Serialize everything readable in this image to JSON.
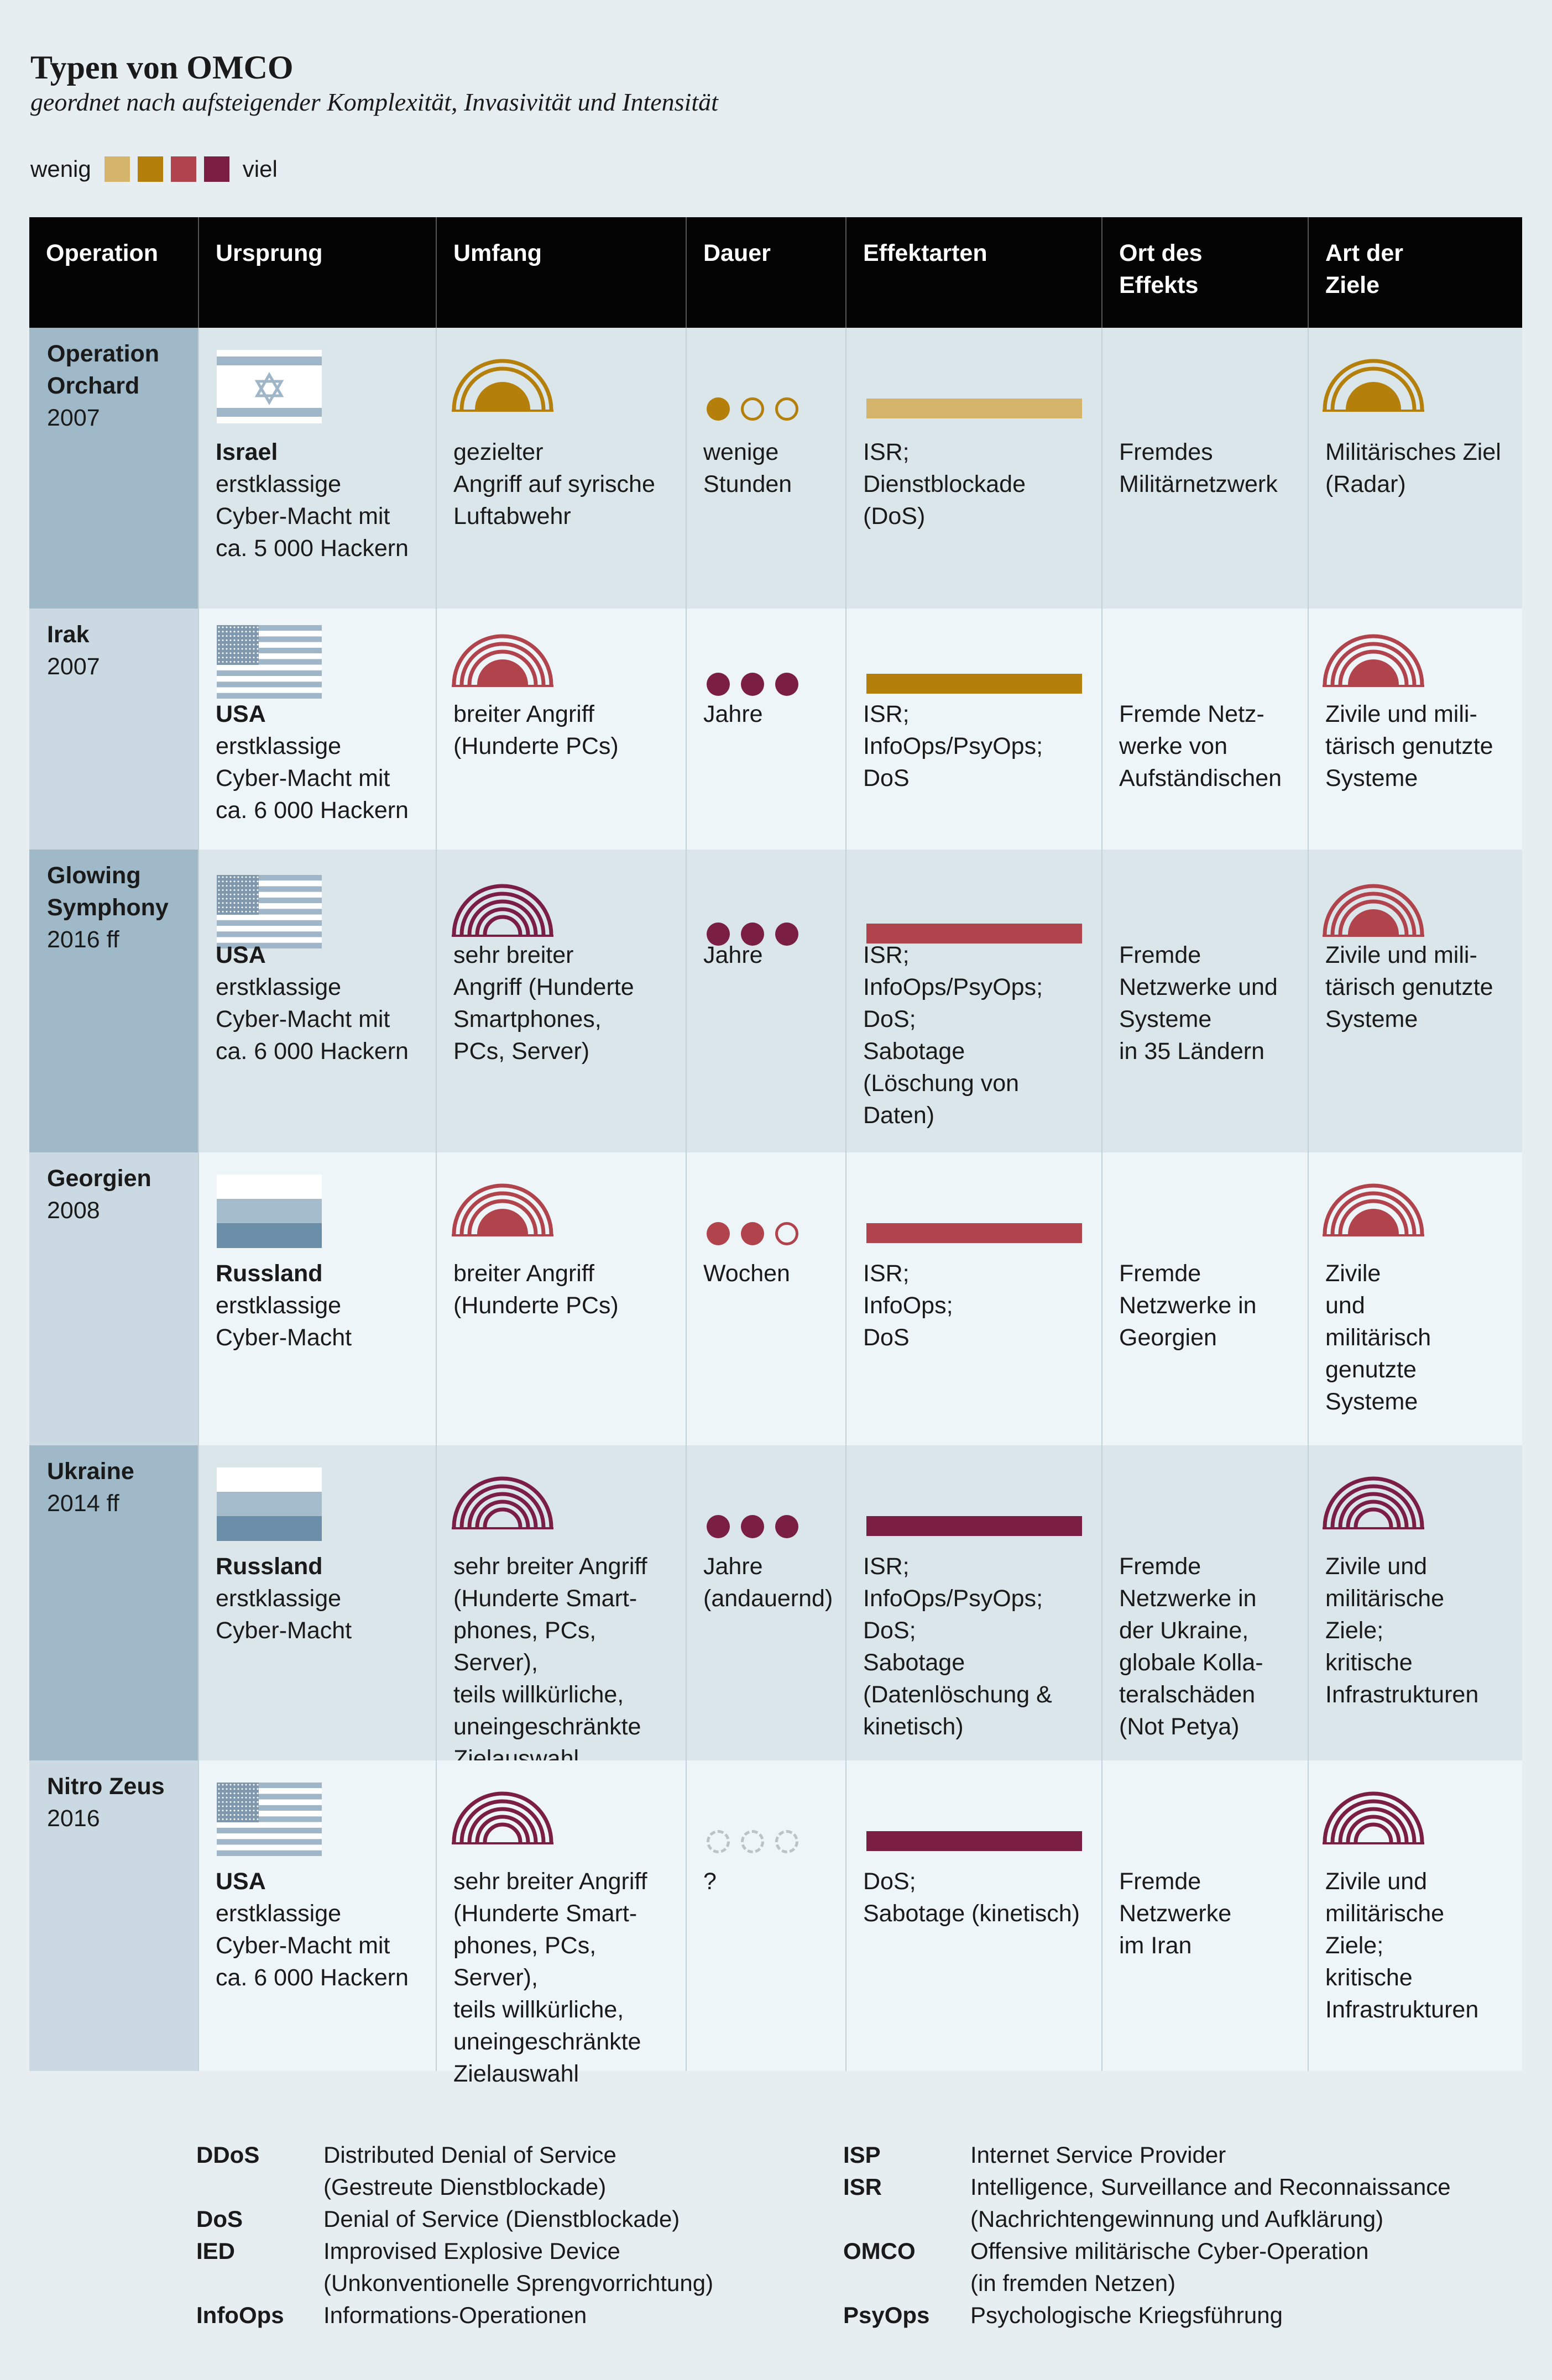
{
  "title": "Typen von OMCO",
  "subtitle": "geordnet nach aufsteigender Komplexität, Invasivität und Intensität",
  "scale": {
    "low": "wenig",
    "high": "viel",
    "colors": [
      "#d4b46b",
      "#b47f0a",
      "#b0434b",
      "#7a1e44"
    ]
  },
  "headers": {
    "operation": "Operation",
    "origin": "Ursprung",
    "scope": "Umfang",
    "duration": "Dauer",
    "effects": "Effektarten",
    "location": "Ort des\nEffekts",
    "targets": "Art der\nZiele"
  },
  "rows": [
    {
      "name": "Operation\nOrchard",
      "year": "2007",
      "flag": "israel",
      "country": "Israel",
      "origin_desc": "erstklassige\nCyber-Macht mit\nca. 5 000 Hackern",
      "scope_level": 1,
      "scope_color": "#b47f0a",
      "scope_text": "gezielter\nAngriff auf syrische\nLuftabwehr",
      "duration_filled": 1,
      "duration_color": "#b47f0a",
      "duration_text": "wenige\nStunden",
      "effects_color": "#d4b46b",
      "effects_text": "ISR;\nDienstblockade\n(DoS)",
      "location_text": "Fremdes\nMilitärnetzwerk",
      "targets_level": 1,
      "targets_color": "#b47f0a",
      "targets_text": "Militärisches Ziel\n(Radar)"
    },
    {
      "name": "Irak",
      "year": "2007",
      "flag": "usa",
      "country": "USA",
      "origin_desc": "erstklassige\nCyber-Macht mit\nca. 6 000 Hackern",
      "scope_level": 2,
      "scope_color": "#b0434b",
      "scope_text": "breiter Angriff\n(Hunderte PCs)",
      "duration_filled": 3,
      "duration_color": "#7a1e44",
      "duration_text": "Jahre",
      "effects_color": "#b47f0a",
      "effects_text": "ISR;\nInfoOps/PsyOps;\nDoS",
      "location_text": "Fremde Netz-\nwerke von\nAufständischen",
      "targets_level": 2,
      "targets_color": "#b0434b",
      "targets_text": "Zivile und mili-\ntärisch genutzte\nSysteme"
    },
    {
      "name": "Glowing\nSymphony",
      "year": "2016 ff",
      "flag": "usa",
      "country": "USA",
      "origin_desc": "erstklassige\nCyber-Macht mit\nca. 6 000 Hackern",
      "scope_level": 3,
      "scope_color": "#7a1e44",
      "scope_text": "sehr breiter\nAngriff (Hunderte\nSmartphones,\nPCs, Server)",
      "duration_filled": 3,
      "duration_color": "#7a1e44",
      "duration_text": "Jahre",
      "effects_color": "#b0434b",
      "effects_text": "ISR;\nInfoOps/PsyOps;\nDoS;\nSabotage\n(Löschung von\nDaten)",
      "location_text": "Fremde\nNetzwerke und\nSysteme\nin 35 Ländern",
      "targets_level": 2,
      "targets_color": "#b0434b",
      "targets_text": "Zivile und mili-\ntärisch genutzte\nSysteme"
    },
    {
      "name": "Georgien",
      "year": "2008",
      "flag": "russia",
      "country": "Russland",
      "origin_desc": "erstklassige\nCyber-Macht",
      "scope_level": 2,
      "scope_color": "#b0434b",
      "scope_text": "breiter Angriff\n(Hunderte PCs)",
      "duration_filled": 2,
      "duration_color": "#b0434b",
      "duration_text": "Wochen",
      "effects_color": "#b0434b",
      "effects_text": "ISR;\nInfoOps;\nDoS",
      "location_text": "Fremde\nNetzwerke in\nGeorgien",
      "targets_level": 2,
      "targets_color": "#b0434b",
      "targets_text": "Zivile\nund\nmilitärisch\ngenutzte\nSysteme"
    },
    {
      "name": "Ukraine",
      "year": "2014 ff",
      "flag": "russia",
      "country": "Russland",
      "origin_desc": "erstklassige\nCyber-Macht",
      "scope_level": 3,
      "scope_color": "#7a1e44",
      "scope_text": "sehr breiter Angriff\n(Hunderte Smart-\nphones, PCs, Server),\nteils willkürliche,\nuneingeschränkte\nZielauswahl",
      "duration_filled": 3,
      "duration_color": "#7a1e44",
      "duration_text": "Jahre\n(andauernd)",
      "effects_color": "#7a1e44",
      "effects_text": "ISR;\nInfoOps/PsyOps;\nDoS;\nSabotage\n(Datenlöschung &\nkinetisch)",
      "location_text": "Fremde\nNetzwerke in\nder Ukraine,\nglobale Kolla-\nteralschäden\n(Not Petya)",
      "targets_level": 3,
      "targets_color": "#7a1e44",
      "targets_text": "Zivile und\nmilitärische\nZiele;\nkritische\nInfrastrukturen"
    },
    {
      "name": "Nitro Zeus",
      "year": "2016",
      "flag": "usa",
      "country": "USA",
      "origin_desc": "erstklassige\nCyber-Macht mit\nca. 6 000 Hackern",
      "scope_level": 3,
      "scope_color": "#7a1e44",
      "scope_text": "sehr breiter Angriff\n(Hunderte Smart-\nphones, PCs, Server),\nteils willkürliche,\nuneingeschränkte\nZielauswahl",
      "duration_filled": -1,
      "duration_color": "#b9c3c8",
      "duration_text": "?",
      "effects_color": "#7a1e44",
      "effects_text": "DoS;\nSabotage (kinetisch)",
      "location_text": "Fremde\nNetzwerke\nim Iran",
      "targets_level": 3,
      "targets_color": "#7a1e44",
      "targets_text": "Zivile und\nmilitärische\nZiele;\nkritische\nInfrastrukturen"
    }
  ],
  "legend_left": [
    {
      "abbr": "DDoS",
      "def": "Distributed Denial of Service\n(Gestreute Dienstblockade)"
    },
    {
      "abbr": "DoS",
      "def": "Denial of Service (Dienstblockade)"
    },
    {
      "abbr": "IED",
      "def": "Improvised Explosive Device\n(Unkonventionelle Sprengvorrichtung)"
    },
    {
      "abbr": "InfoOps",
      "def": "Informations-Operationen"
    }
  ],
  "legend_right": [
    {
      "abbr": "ISP",
      "def": "Internet Service Provider"
    },
    {
      "abbr": "ISR",
      "def": "Intelligence, Surveillance and Reconnaissance\n(Nachrichtengewinnung und Aufklärung)"
    },
    {
      "abbr": "OMCO",
      "def": "Offensive militärische Cyber-Operation\n(in fremden Netzen)"
    },
    {
      "abbr": "PsyOps",
      "def": "Psychologische Kriegsführung"
    }
  ]
}
